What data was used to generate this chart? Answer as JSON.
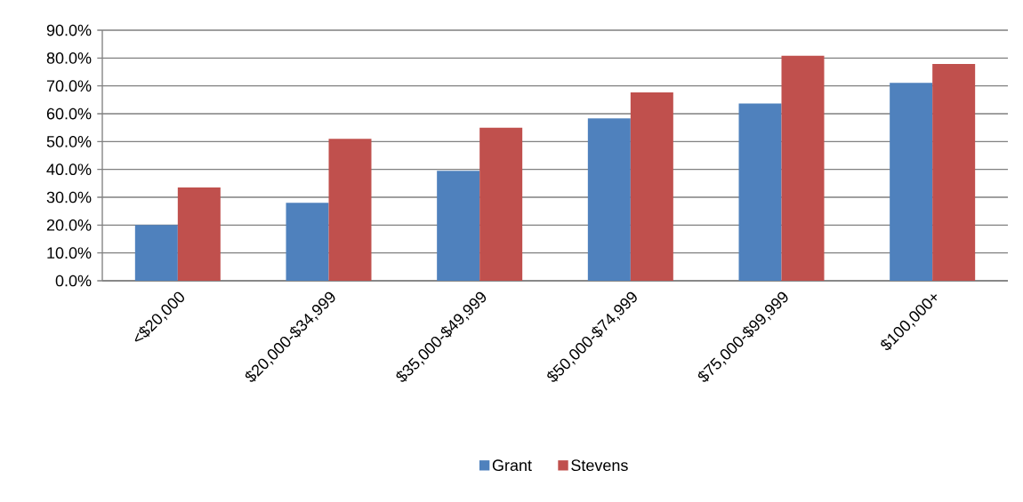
{
  "chart_data": {
    "type": "bar",
    "categories": [
      "<$20,000",
      "$20,000-$34,999",
      "$35,000-$49,999",
      "$50,000-$74,999",
      "$75,000-$99,999",
      "$100,000+"
    ],
    "series": [
      {
        "name": "Grant",
        "color": "#4f81bd",
        "values": [
          20.0,
          28.0,
          39.5,
          58.3,
          63.7,
          71.1
        ]
      },
      {
        "name": "Stevens",
        "color": "#c0504d",
        "values": [
          33.5,
          51.0,
          55.0,
          67.7,
          80.8,
          77.9
        ]
      }
    ],
    "ylim": [
      0,
      90
    ],
    "yticks": [
      {
        "value": 0,
        "label": "0.0%"
      },
      {
        "value": 10,
        "label": "10.0%"
      },
      {
        "value": 20,
        "label": "20.0%"
      },
      {
        "value": 30,
        "label": "30.0%"
      },
      {
        "value": 40,
        "label": "40.0%"
      },
      {
        "value": 50,
        "label": "50.0%"
      },
      {
        "value": 60,
        "label": "60.0%"
      },
      {
        "value": 70,
        "label": "70.0%"
      },
      {
        "value": 80,
        "label": "80.0%"
      },
      {
        "value": 90,
        "label": "90.0%"
      }
    ],
    "grid": "y",
    "legend": "bottom"
  }
}
